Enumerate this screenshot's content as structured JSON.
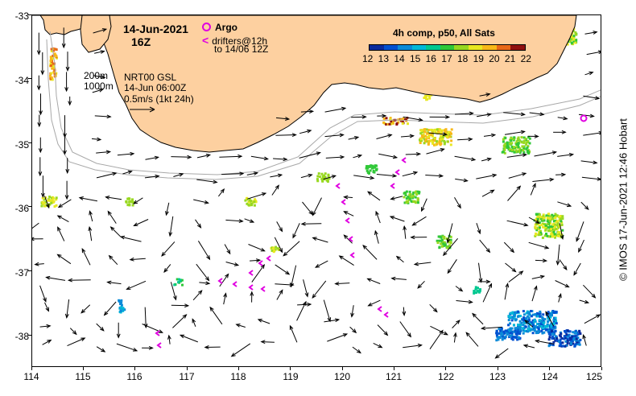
{
  "title": {
    "date": "14-Jun-2021",
    "hour": "16Z"
  },
  "argo_legend": {
    "label": "Argo",
    "drifters_line1": "drifters@12h",
    "drifters_line2": "to 14/06 12Z",
    "drifter_marker": "<",
    "color": "#e000e0"
  },
  "isobath_legend": {
    "line1": "200m",
    "line2": "1000m"
  },
  "source_info": {
    "line1": "NRT00 GSL",
    "line2": "14-Jun 06:00Z",
    "line3": "0.5m/s (1kt 24h)"
  },
  "colorbar": {
    "title": "4h comp, p50, All Sats",
    "ticks": [
      "12",
      "13",
      "14",
      "15",
      "16",
      "17",
      "18",
      "19",
      "20",
      "21",
      "22"
    ],
    "colors": [
      "#0a2a9c",
      "#0050d0",
      "#0a8ad8",
      "#00b8d8",
      "#00c890",
      "#30c838",
      "#98d820",
      "#e8e820",
      "#f8b818",
      "#e86818",
      "#901010"
    ]
  },
  "axes": {
    "x_ticks": [
      "114",
      "115",
      "116",
      "117",
      "118",
      "119",
      "120",
      "121",
      "122",
      "123",
      "124",
      "125"
    ],
    "y_ticks": [
      "-33",
      "-34",
      "-35",
      "-36",
      "-37",
      "-38"
    ],
    "xlim": [
      114,
      125
    ],
    "ylim": [
      -38.5,
      -33
    ]
  },
  "colors": {
    "land": "#fdd0a0",
    "isobath": "#a8a8a8"
  },
  "credit": "© IMOS 17-Jun-2021 12:46 Hobart"
}
